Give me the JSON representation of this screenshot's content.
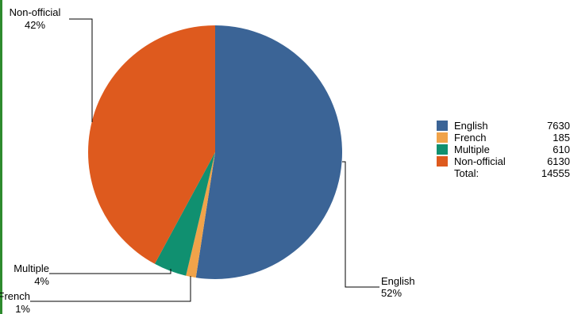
{
  "chart_data": {
    "type": "pie",
    "slices": [
      {
        "name": "English",
        "value": 7630,
        "percent_label": "52%",
        "color": "#3b6496"
      },
      {
        "name": "French",
        "value": 185,
        "percent_label": "1%",
        "color": "#f0a34a"
      },
      {
        "name": "Multiple",
        "value": 610,
        "percent_label": "4%",
        "color": "#109070"
      },
      {
        "name": "Non-official",
        "value": 6130,
        "percent_label": "42%",
        "color": "#de5a1e"
      }
    ],
    "legend": {
      "placement": "right",
      "total_label": "Total:",
      "total_value": "14555"
    }
  }
}
